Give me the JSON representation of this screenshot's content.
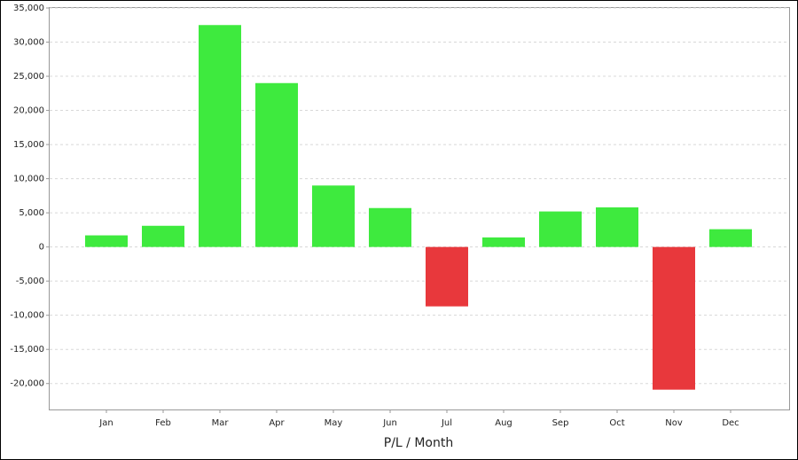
{
  "chart_data": {
    "type": "bar",
    "x_label": "P/L / Month",
    "categories": [
      "Jan",
      "Feb",
      "Mar",
      "Apr",
      "May",
      "Jun",
      "Jul",
      "Aug",
      "Sep",
      "Oct",
      "Nov",
      "Dec"
    ],
    "values": [
      1700,
      3100,
      32500,
      24000,
      9000,
      5700,
      -8700,
      1400,
      5200,
      5800,
      -20900,
      2600
    ],
    "colors": [
      "#3eea3e",
      "#3eea3e",
      "#3eea3e",
      "#3eea3e",
      "#3eea3e",
      "#3eea3e",
      "#e8383c",
      "#3eea3e",
      "#3eea3e",
      "#3eea3e",
      "#e8383c",
      "#3eea3e"
    ],
    "ylim": [
      -23800,
      35000
    ],
    "yticks": [
      {
        "value": -20000,
        "label": "-20,000"
      },
      {
        "value": -15000,
        "label": "-15,000"
      },
      {
        "value": -10000,
        "label": "-10,000"
      },
      {
        "value": -5000,
        "label": "-5,000"
      },
      0,
      {
        "value": 5000,
        "label": "5,000"
      },
      {
        "value": 10000,
        "label": "10,000"
      },
      {
        "value": 15000,
        "label": "15,000"
      },
      {
        "value": 20000,
        "label": "20,000"
      },
      {
        "value": 25000,
        "label": "25,000"
      },
      {
        "value": 30000,
        "label": "30,000"
      },
      {
        "value": 35000,
        "label": "35,000"
      }
    ],
    "grid": true
  }
}
